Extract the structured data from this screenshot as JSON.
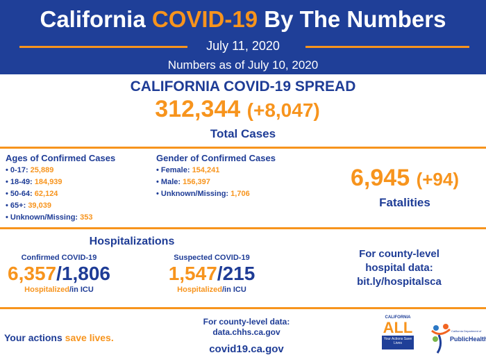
{
  "header": {
    "title_pre": "California ",
    "title_accent": "COVID-19",
    "title_post": " By The Numbers",
    "date": "July 11, 2020",
    "as_of": "Numbers as of July 10, 2020"
  },
  "spread": {
    "title": "CALIFORNIA COVID-19 SPREAD",
    "total": "312,344",
    "change": "(+8,047)",
    "label": "Total Cases"
  },
  "ages": {
    "title": "Ages of Confirmed Cases",
    "items": [
      {
        "k": "0-17:",
        "v": "25,889"
      },
      {
        "k": "18-49:",
        "v": "184,939"
      },
      {
        "k": "50-64:",
        "v": "62,124"
      },
      {
        "k": "65+:",
        "v": "39,039"
      },
      {
        "k": "Unknown/Missing:",
        "v": "353"
      }
    ]
  },
  "gender": {
    "title": "Gender of Confirmed Cases",
    "items": [
      {
        "k": "Female:",
        "v": "154,241"
      },
      {
        "k": "Male:",
        "v": "156,397"
      },
      {
        "k": "Unknown/Missing:",
        "v": "1,706"
      }
    ]
  },
  "fatalities": {
    "total": "6,945",
    "change": "(+94)",
    "label": "Fatalities"
  },
  "hosp": {
    "title": "Hospitalizations",
    "confirmed": {
      "label": "Confirmed COVID-19",
      "hosp": "6,357",
      "icu": "1,806",
      "hosp_label": "Hospitalized",
      "icu_label": "/in ICU"
    },
    "suspected": {
      "label": "Suspected COVID-19",
      "hosp": "1,547",
      "icu": "215",
      "hosp_label": "Hospitalized",
      "icu_label": "/in ICU"
    },
    "county": [
      "For county-level",
      "hospital data:",
      "bit.ly/hospitalsca"
    ]
  },
  "footer": {
    "slogan_pre": "Your actions ",
    "slogan_accent": "save lives.",
    "county_label": "For county-level data:",
    "county_url": "data.chhs.ca.gov",
    "site": "covid19.ca.gov",
    "logo1": {
      "top": "CALIFORNIA",
      "main": "ALL",
      "box": "Your Actions Save Lives"
    },
    "logo2": {
      "small": "California Department of",
      "main": "PublicHealth"
    }
  },
  "colors": {
    "blue": "#1f3f98",
    "orange": "#f7941d"
  }
}
